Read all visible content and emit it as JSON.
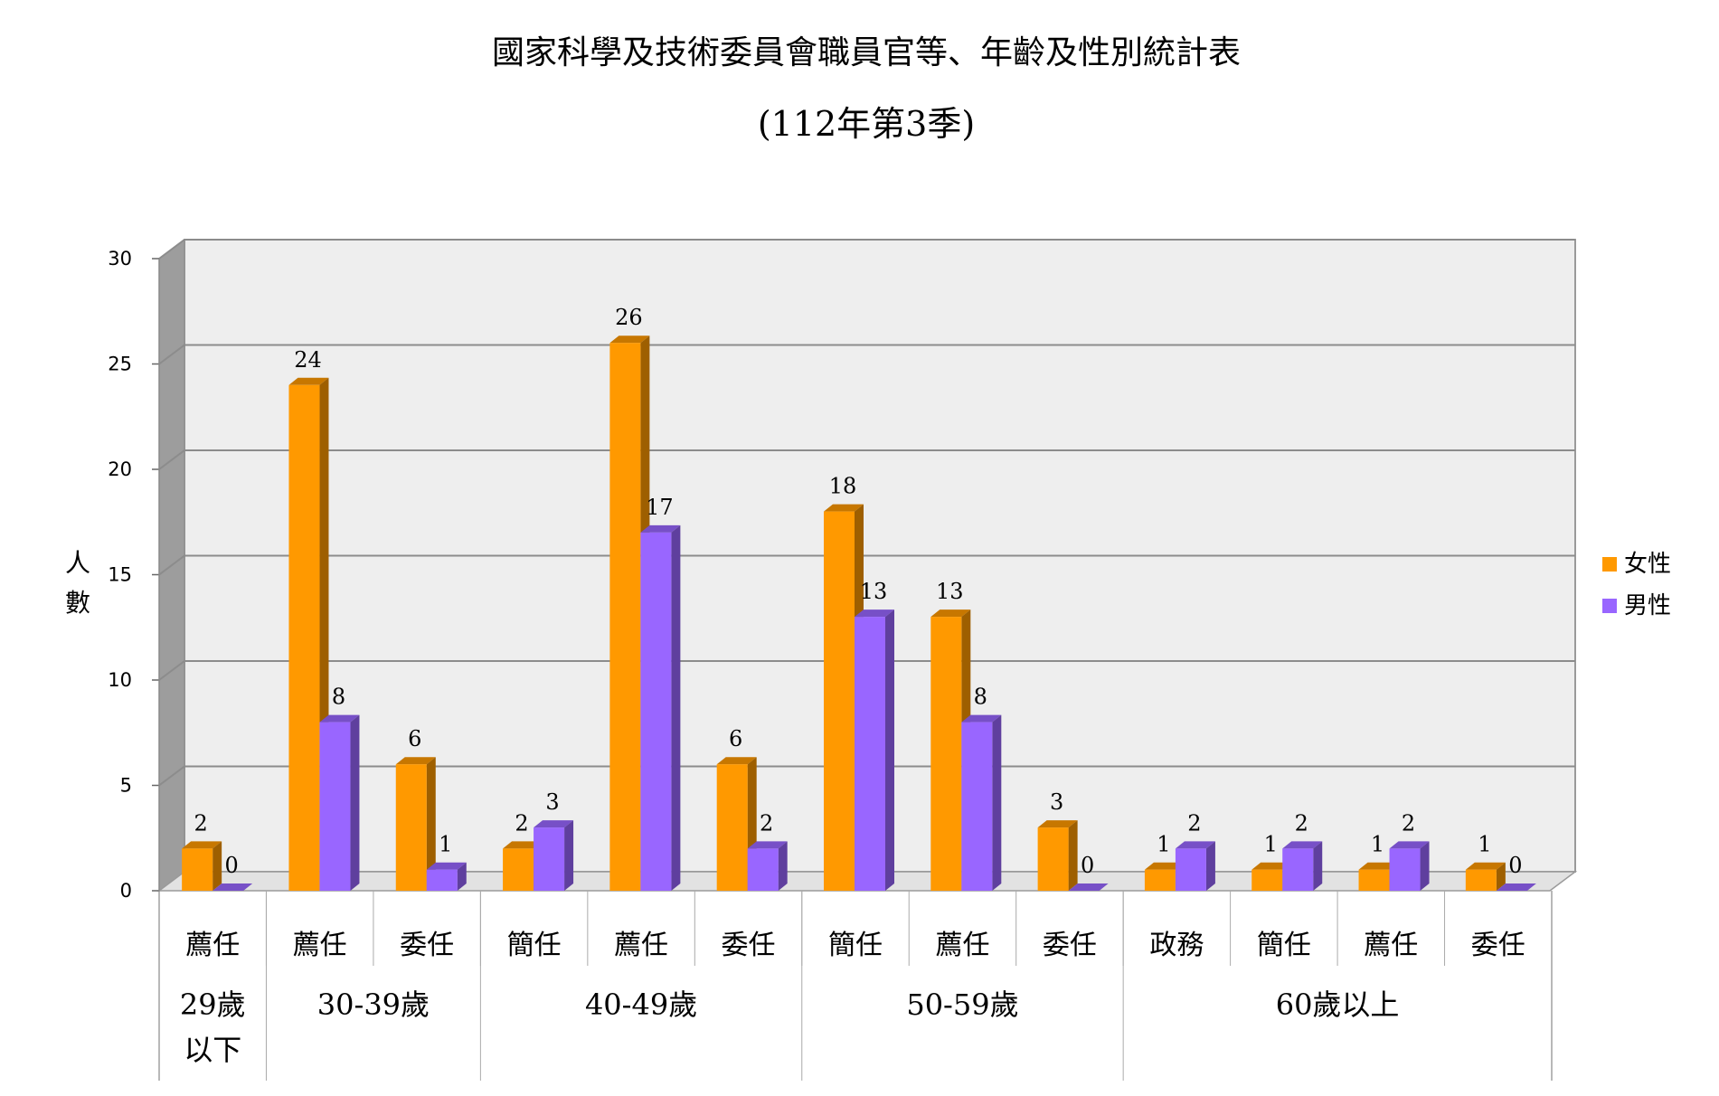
{
  "chart_data": {
    "type": "bar",
    "title": "國家科學及技術委員會職員官等、年齡及性別統計表",
    "subtitle": "(112年第3季)",
    "ylabel": "人數",
    "xlabel": "",
    "ylim": [
      0,
      30
    ],
    "yticks": [
      0,
      5,
      10,
      15,
      20,
      25,
      30
    ],
    "grid": true,
    "legend_position": "right",
    "categories": [
      "薦任",
      "薦任",
      "委任",
      "簡任",
      "薦任",
      "委任",
      "簡任",
      "薦任",
      "委任",
      "政務",
      "簡任",
      "薦任",
      "委任"
    ],
    "groups": [
      {
        "label": "29歲\n以下",
        "count": 1
      },
      {
        "label": "30-39歲",
        "count": 2
      },
      {
        "label": "40-49歲",
        "count": 3
      },
      {
        "label": "50-59歲",
        "count": 3
      },
      {
        "label": "60歲以上",
        "count": 4
      }
    ],
    "series": [
      {
        "name": "女性",
        "color": "#FF9900",
        "values": [
          2,
          24,
          6,
          2,
          26,
          6,
          18,
          13,
          3,
          1,
          1,
          1,
          1
        ]
      },
      {
        "name": "男性",
        "color": "#9966FF",
        "values": [
          0,
          8,
          1,
          3,
          17,
          2,
          13,
          8,
          0,
          2,
          2,
          2,
          0
        ]
      }
    ]
  }
}
